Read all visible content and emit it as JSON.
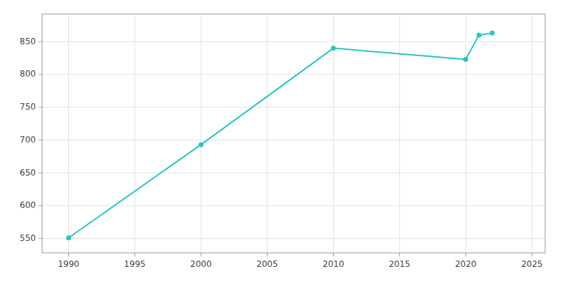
{
  "chart_data": {
    "type": "line",
    "x": [
      1990,
      2000,
      2010,
      2020,
      2021,
      2022
    ],
    "values": [
      551,
      693,
      840,
      823,
      860,
      863
    ],
    "color": "#28c4c4",
    "marker": "circle",
    "xlim": [
      1988,
      2026
    ],
    "ylim": [
      528,
      892
    ],
    "xticks": [
      1990,
      1995,
      2000,
      2005,
      2010,
      2015,
      2020,
      2025
    ],
    "yticks": [
      550,
      600,
      650,
      700,
      750,
      800,
      850
    ],
    "grid": true
  }
}
